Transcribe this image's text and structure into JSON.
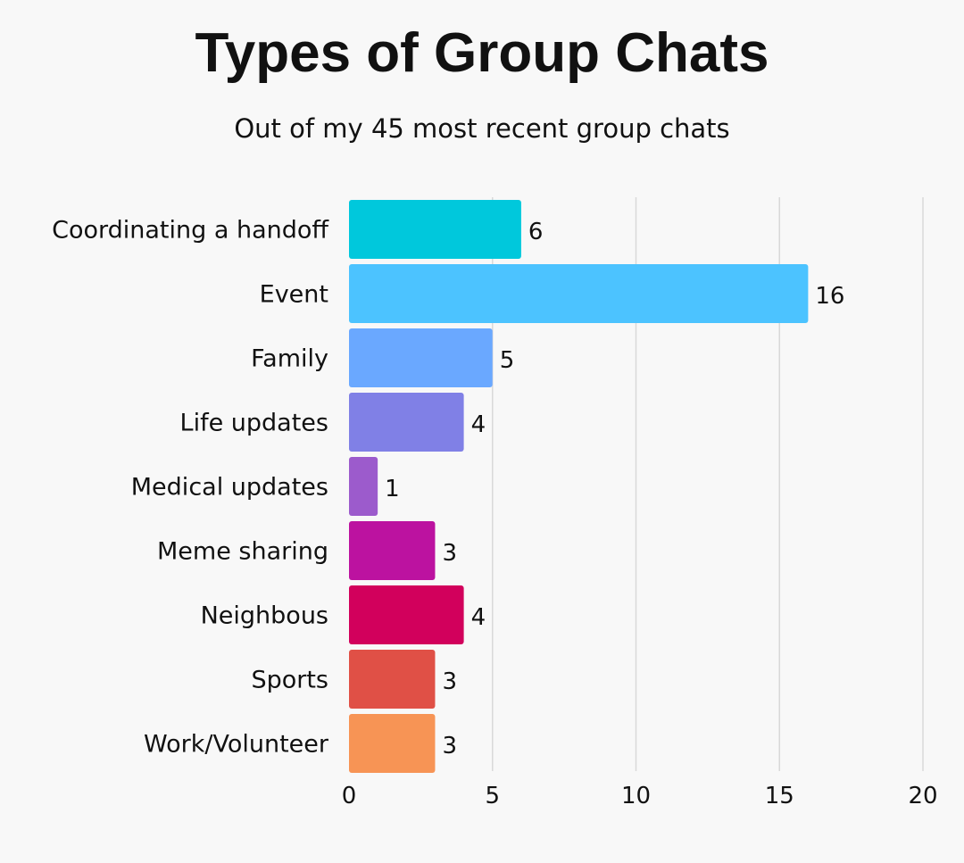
{
  "chart_data": {
    "type": "bar",
    "orientation": "horizontal",
    "title": "Types of Group Chats",
    "subtitle": "Out of my 45 most recent group chats",
    "categories": [
      "Coordinating a handoff",
      "Event",
      "Family",
      "Life updates",
      "Medical updates",
      "Meme sharing",
      "Neighbous",
      "Sports",
      "Work/Volunteer"
    ],
    "values": [
      6,
      16,
      5,
      4,
      1,
      3,
      4,
      3,
      3
    ],
    "colors": [
      "#00c8dc",
      "#4cc3ff",
      "#6aa8ff",
      "#8080e6",
      "#9c5bcc",
      "#bc12a0",
      "#d2005c",
      "#e05046",
      "#f79455"
    ],
    "xlim": [
      0,
      20
    ],
    "xticks": [
      0,
      5,
      10,
      15,
      20
    ],
    "xlabel": "",
    "ylabel": "",
    "grid": "vertical",
    "gridline_color": "#d9d9d9",
    "legend": "none"
  }
}
